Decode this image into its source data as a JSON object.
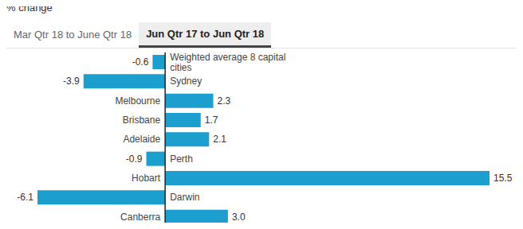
{
  "tabs": [
    {
      "label": "Mar Qtr 18 to June Qtr 18",
      "active": false
    },
    {
      "label": "Jun Qtr 17 to Jun Qtr 18",
      "active": true
    }
  ],
  "chart_data": {
    "type": "bar",
    "orientation": "horizontal",
    "title": "% change",
    "categories": [
      "Weighted average 8 capital cities",
      "Sydney",
      "Melbourne",
      "Brisbane",
      "Adelaide",
      "Perth",
      "Hobart",
      "Darwin",
      "Canberra"
    ],
    "values": [
      -0.6,
      -3.9,
      2.3,
      1.7,
      2.1,
      -0.9,
      15.5,
      -6.1,
      3.0
    ],
    "value_labels": [
      "-0.6",
      "-3.9",
      "2.3",
      "1.7",
      "2.1",
      "-0.9",
      "15.5",
      "-6.1",
      "3.0"
    ],
    "color": "#1c9fcf",
    "xlim": [
      -6.1,
      15.5
    ],
    "data_labels": true,
    "tick_labels": false,
    "grid": false
  }
}
